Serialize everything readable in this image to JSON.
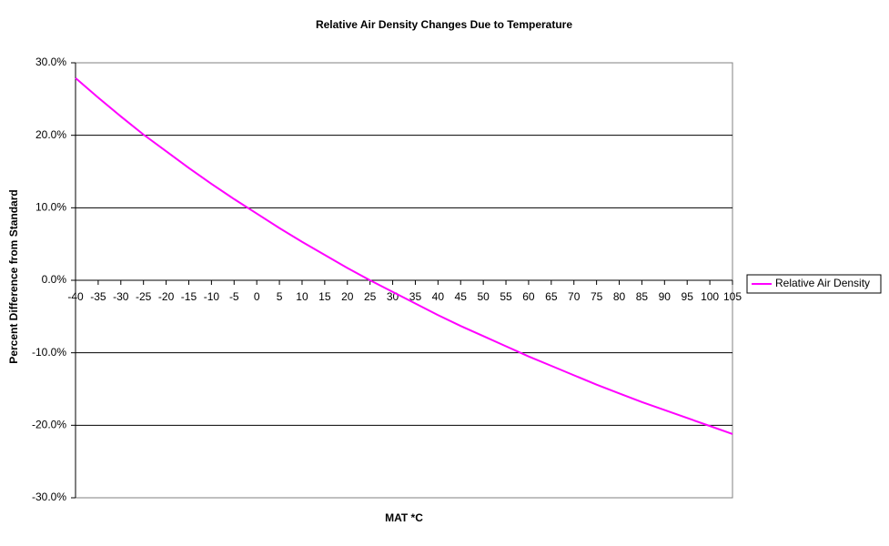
{
  "chart_data": {
    "type": "line",
    "title": "Relative Air Density Changes Due to Temperature",
    "x_label": "MAT *C",
    "y_label": "Percent Difference from Standard",
    "x": [
      -40,
      -35,
      -30,
      -25,
      -20,
      -15,
      -10,
      -5,
      0,
      5,
      10,
      15,
      20,
      25,
      30,
      35,
      40,
      45,
      50,
      55,
      60,
      65,
      70,
      75,
      80,
      85,
      90,
      95,
      100,
      105
    ],
    "xlim": [
      -40,
      105
    ],
    "series": [
      {
        "name": "Relative Air Density",
        "color": "#ff00ff",
        "values": [
          27.9,
          25.2,
          22.6,
          20.1,
          17.8,
          15.5,
          13.3,
          11.2,
          9.2,
          7.2,
          5.3,
          3.5,
          1.7,
          0,
          -1.6,
          -3.2,
          -4.8,
          -6.3,
          -7.7,
          -9.1,
          -10.5,
          -11.8,
          -13.1,
          -14.4,
          -15.6,
          -16.8,
          -17.9,
          -19.0,
          -20.1,
          -21.2
        ]
      }
    ],
    "ylim": [
      -30,
      30
    ],
    "yticks": [
      {
        "value": -30,
        "label": "-30.0%"
      },
      {
        "value": -20,
        "label": "-20.0%"
      },
      {
        "value": -10,
        "label": "-10.0%"
      },
      {
        "value": 0,
        "label": "0.0%"
      },
      {
        "value": 10,
        "label": "10.0%"
      },
      {
        "value": 20,
        "label": "20.0%"
      },
      {
        "value": 30,
        "label": "30.0%"
      }
    ],
    "grid": true,
    "legend": "right"
  }
}
